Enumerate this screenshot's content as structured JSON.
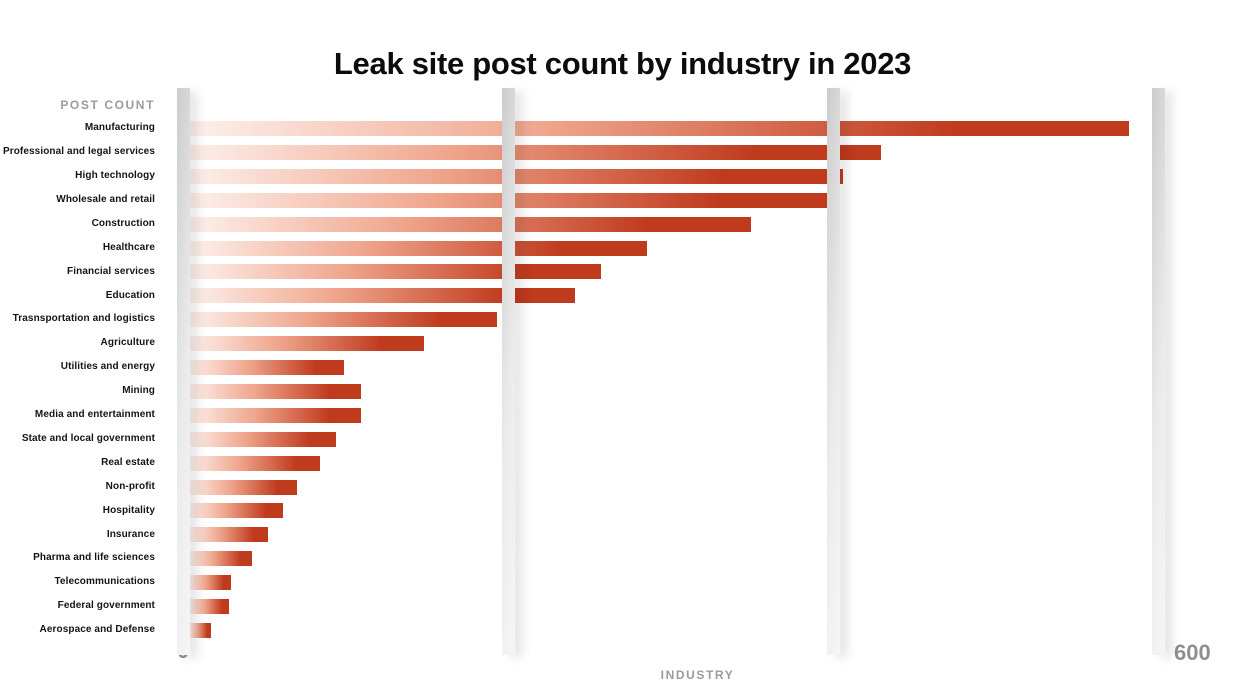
{
  "page": {
    "background": "#ffffff"
  },
  "chart_data": {
    "type": "bar",
    "orientation": "horizontal",
    "title": "Leak site post count by industry in 2023",
    "x_axis_label": "INDUSTRY",
    "y_axis_label": "POST COUNT",
    "xlim": [
      0,
      600
    ],
    "x_ticks": [
      0,
      200,
      400,
      600
    ],
    "tick_labels": {
      "min": "0",
      "max": "600"
    },
    "grid": "vertical-ribbons",
    "legend": "none",
    "categories": [
      "Manufacturing",
      "Professional and legal services",
      "High technology",
      "Wholesale and retail",
      "Construction",
      "Healthcare",
      "Financial services",
      "Education",
      "Trasnsportation and logistics",
      "Agriculture",
      "Utilities and energy",
      "Mining",
      "Media and entertainment",
      "State and local government",
      "Real estate",
      "Non-profit",
      "Hospitality",
      "Insurance",
      "Pharma and life sciences",
      "Telecommunications",
      "Federal government",
      "Aerospace and Defense"
    ],
    "values": [
      578,
      425,
      402,
      398,
      345,
      281,
      253,
      237,
      189,
      144,
      95,
      105,
      105,
      90,
      80,
      66,
      57,
      48,
      38,
      25,
      24,
      13
    ],
    "colors": {
      "bar_dark": "#c03a1d",
      "bar_light": "#fdf0eb",
      "ribbon": "#e4e4e4",
      "muted_text": "#9b9b9b",
      "title_text": "#0c0c0c"
    }
  }
}
